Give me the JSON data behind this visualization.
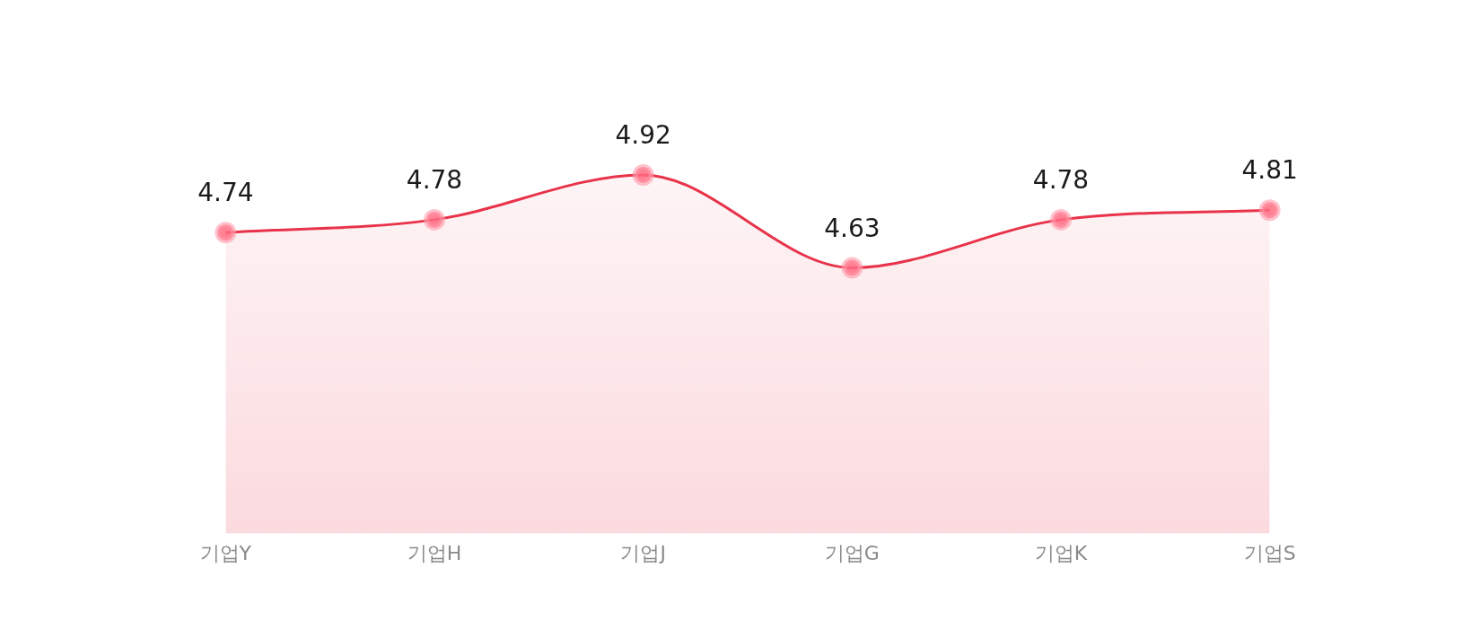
{
  "chart_data": {
    "type": "area",
    "categories": [
      "기업Y",
      "기업H",
      "기업J",
      "기업G",
      "기업K",
      "기업S"
    ],
    "series": [
      {
        "color": "#e8334a",
        "values": [
          4.74,
          4.78,
          4.92,
          4.63,
          4.78,
          4.81
        ]
      }
    ],
    "tick_labels": "x",
    "grid": false,
    "legend": false,
    "data_labels": true,
    "marker": "circle"
  }
}
